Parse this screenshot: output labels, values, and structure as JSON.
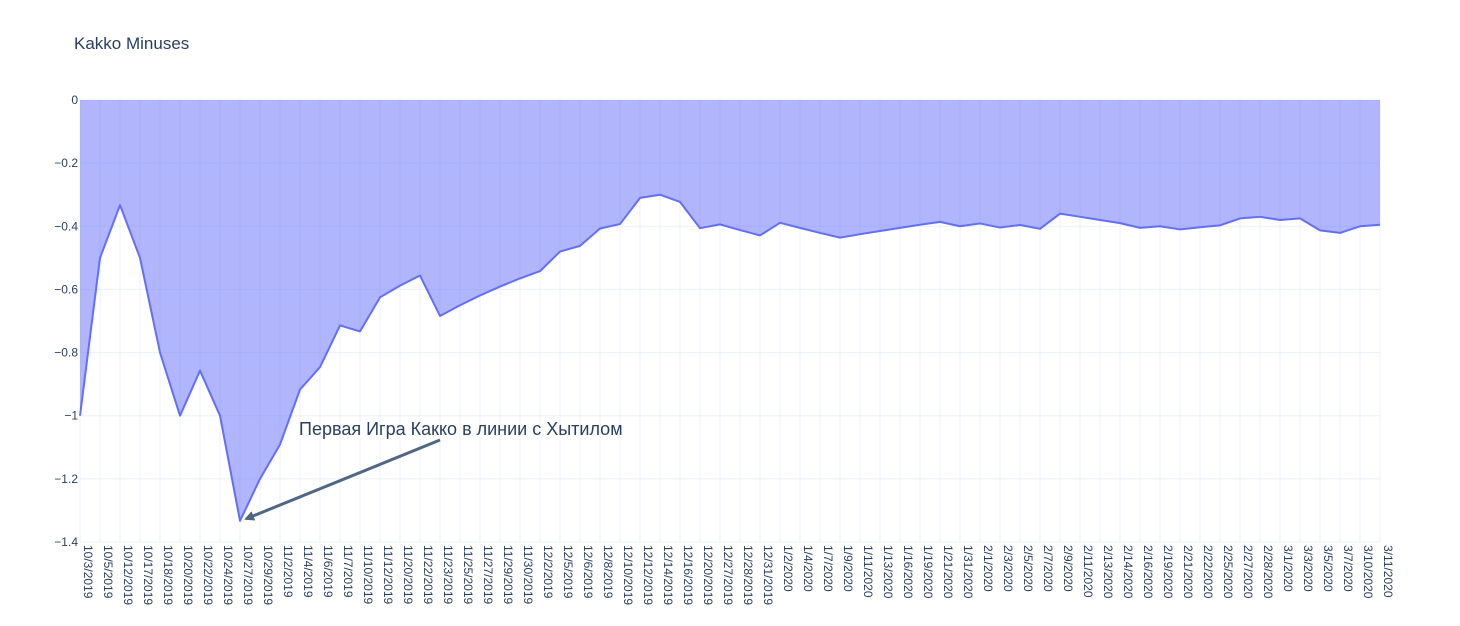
{
  "chart_data": {
    "type": "area",
    "title": "Kakko Minuses",
    "xlabel": "",
    "ylabel": "",
    "ylim": [
      -1.4,
      0
    ],
    "yticks": [
      0,
      -0.2,
      -0.4,
      -0.6,
      -0.8,
      -1,
      -1.2,
      -1.4
    ],
    "ytick_labels": [
      "0",
      "−0.2",
      "−0.4",
      "−0.6",
      "−0.8",
      "−1",
      "−1.2",
      "−1.4"
    ],
    "grid": true,
    "fill_color": "#636efa",
    "line_color": "#636efa",
    "categories": [
      "10/3/2019",
      "10/5/2019",
      "10/12/2019",
      "10/17/2019",
      "10/18/2019",
      "10/20/2019",
      "10/22/2019",
      "10/24/2019",
      "10/27/2019",
      "10/29/2019",
      "11/2/2019",
      "11/4/2019",
      "11/6/2019",
      "11/7/2019",
      "11/10/2019",
      "11/12/2019",
      "11/20/2019",
      "11/22/2019",
      "11/23/2019",
      "11/25/2019",
      "11/27/2019",
      "11/29/2019",
      "11/30/2019",
      "12/2/2019",
      "12/5/2019",
      "12/6/2019",
      "12/8/2019",
      "12/10/2019",
      "12/12/2019",
      "12/14/2019",
      "12/16/2019",
      "12/20/2019",
      "12/27/2019",
      "12/28/2019",
      "12/31/2019",
      "1/2/2020",
      "1/4/2020",
      "1/7/2020",
      "1/9/2020",
      "1/11/2020",
      "1/13/2020",
      "1/16/2020",
      "1/19/2020",
      "1/21/2020",
      "1/31/2020",
      "2/1/2020",
      "2/3/2020",
      "2/5/2020",
      "2/7/2020",
      "2/9/2020",
      "2/11/2020",
      "2/13/2020",
      "2/14/2020",
      "2/16/2020",
      "2/19/2020",
      "2/21/2020",
      "2/22/2020",
      "2/25/2020",
      "2/27/2020",
      "2/28/2020",
      "3/1/2020",
      "3/3/2020",
      "3/5/2020",
      "3/7/2020",
      "3/10/2020",
      "3/11/2020"
    ],
    "series": [
      {
        "name": "",
        "values": [
          -1.0,
          -0.5,
          -0.333,
          -0.5,
          -0.8,
          -1.0,
          -0.857,
          -1.0,
          -1.333,
          -1.2,
          -1.091,
          -0.917,
          -0.846,
          -0.714,
          -0.733,
          -0.625,
          -0.588,
          -0.556,
          -0.684,
          -0.65,
          -0.619,
          -0.591,
          -0.565,
          -0.542,
          -0.48,
          -0.462,
          -0.407,
          -0.393,
          -0.31,
          -0.3,
          -0.323,
          -0.406,
          -0.394,
          -0.412,
          -0.429,
          -0.389,
          -0.405,
          -0.421,
          -0.436,
          -0.425,
          -0.415,
          -0.405,
          -0.395,
          -0.386,
          -0.4,
          -0.391,
          -0.404,
          -0.396,
          -0.408,
          -0.36,
          -0.37,
          -0.38,
          -0.39,
          -0.405,
          -0.4,
          -0.41,
          -0.403,
          -0.397,
          -0.375,
          -0.37,
          -0.38,
          -0.375,
          -0.413,
          -0.421,
          -0.4,
          -0.395
        ]
      }
    ],
    "annotation": {
      "text": "Первая Игра Какко в линии с Хытилом",
      "points_to": "10/27/2019",
      "value": -1.333
    }
  }
}
